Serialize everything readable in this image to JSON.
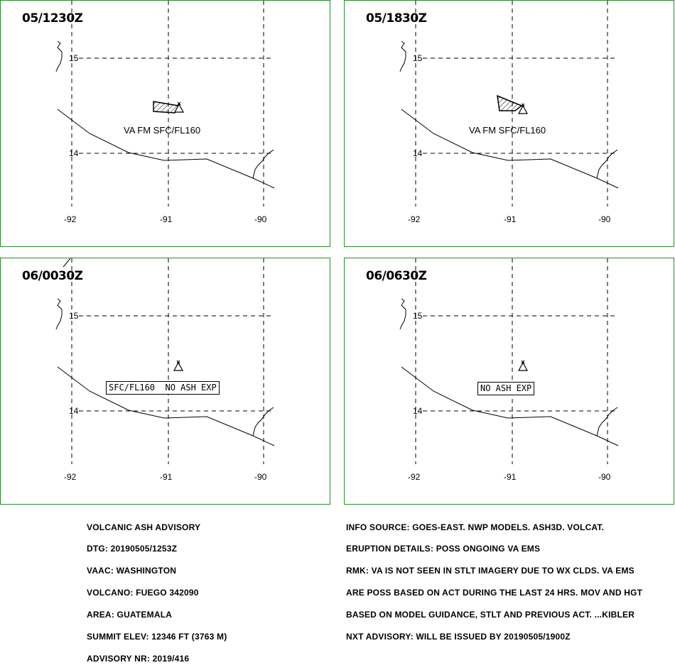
{
  "panels": [
    {
      "time": "05/1230Z",
      "label_type": "plain",
      "label": "VA FM SFC/FL160",
      "has_ash_polygon": true
    },
    {
      "time": "05/1830Z",
      "label_type": "plain",
      "label": "VA FM SFC/FL160",
      "has_ash_polygon": true
    },
    {
      "time": "06/0030Z",
      "label_type": "boxed",
      "label": "SFC/FL160  NO ASH EXP",
      "has_ash_polygon": false
    },
    {
      "time": "06/0630Z",
      "label_type": "boxed",
      "label": "NO ASH EXP",
      "has_ash_polygon": false
    }
  ],
  "map_labels": {
    "lat_15": "15",
    "lat_14": "14",
    "lon_92": "-92",
    "lon_91": "-91",
    "lon_90": "-90"
  },
  "advisory_left": [
    "VOLCANIC ASH ADVISORY",
    "DTG: 20190505/1253Z",
    "VAAC: WASHINGTON",
    "VOLCANO: FUEGO 342090",
    "AREA: GUATEMALA",
    "SUMMIT ELEV: 12346 FT (3763 M)",
    "ADVISORY NR: 2019/416"
  ],
  "advisory_right": [
    "INFO SOURCE: GOES-EAST. NWP MODELS. ASH3D. VOLCAT.",
    "ERUPTION DETAILS: POSS ONGOING VA EMS",
    "RMK: VA IS NOT SEEN IN STLT IMAGERY DUE TO WX CLDS. VA EMS",
    "ARE POSS BASED ON ACT DURING THE LAST 24 HRS. MOV AND HGT",
    "BASED ON MODEL GUIDANCE, STLT AND PREVIOUS ACT. ...KIBLER",
    "NXT ADVISORY: WILL BE ISSUED BY 20190505/1900Z"
  ],
  "colors": {
    "panel_border": "#2a8a2a",
    "ink": "#000000"
  },
  "icons": {
    "volcano": "volcano-triangle-icon",
    "ash_cloud": "hatched-polygon"
  }
}
